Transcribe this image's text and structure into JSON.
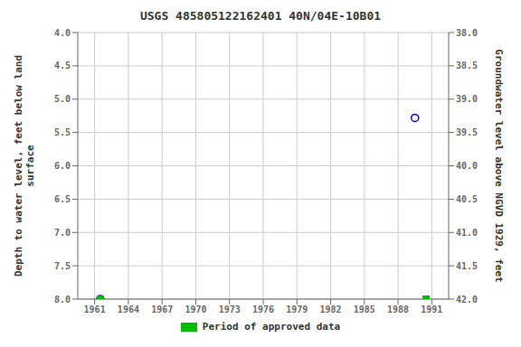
{
  "chart_data": {
    "type": "scatter",
    "title": "USGS 485805122162401 40N/04E-10B01",
    "ylabel": "Depth to water level, feet below land\nsurface",
    "y2label": "Groundwater level above NGVD 1929, feet",
    "xlim": [
      1959.5,
      1992.5
    ],
    "xticks": [
      1961,
      1964,
      1967,
      1970,
      1973,
      1976,
      1979,
      1982,
      1985,
      1988,
      1991
    ],
    "ylim": [
      8.0,
      4.0
    ],
    "yticks": [
      {
        "value": 4.0,
        "label": "4.0"
      },
      {
        "value": 4.5,
        "label": "4.5"
      },
      {
        "value": 5.0,
        "label": "5.0"
      },
      {
        "value": 5.5,
        "label": "5.5"
      },
      {
        "value": 6.0,
        "label": "6.0"
      },
      {
        "value": 6.5,
        "label": "6.5"
      },
      {
        "value": 7.0,
        "label": "7.0"
      },
      {
        "value": 7.5,
        "label": "7.5"
      },
      {
        "value": 8.0,
        "label": "8.0"
      }
    ],
    "y2lim": [
      42.0,
      38.0
    ],
    "y2ticks": [
      {
        "value": 42.0,
        "label": "42.0"
      },
      {
        "value": 41.5,
        "label": "41.5"
      },
      {
        "value": 41.0,
        "label": "41.0"
      },
      {
        "value": 40.5,
        "label": "40.5"
      },
      {
        "value": 40.0,
        "label": "40.0"
      },
      {
        "value": 39.5,
        "label": "39.5"
      },
      {
        "value": 39.0,
        "label": "39.0"
      },
      {
        "value": 38.5,
        "label": "38.5"
      },
      {
        "value": 38.0,
        "label": "38.0"
      }
    ],
    "grid": true,
    "legend": "bottom",
    "series": [
      {
        "color": "#0000cc",
        "marker": "circle",
        "x": [
          1961.5,
          1989.5
        ],
        "values": [
          8.0,
          5.28
        ]
      },
      {
        "name": "Period of approved data",
        "color": "#00bb00",
        "marker": "square",
        "x": [
          1961.5,
          1990.5
        ],
        "values": [
          8.0,
          8.0
        ]
      }
    ]
  }
}
